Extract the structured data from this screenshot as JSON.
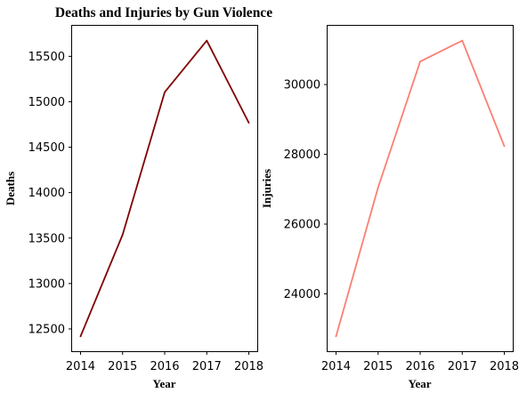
{
  "chart_data": [
    {
      "type": "line",
      "title": "Deaths and Injuries by Gun Violence",
      "xlabel": "Year",
      "ylabel": "Deaths",
      "x": [
        2014,
        2015,
        2016,
        2017,
        2018
      ],
      "series": [
        {
          "values": [
            12418,
            13537,
            15105,
            15673,
            14768
          ],
          "color": "#800000"
        }
      ],
      "xticks": [
        2014,
        2015,
        2016,
        2017,
        2018
      ],
      "yticks": [
        12500,
        13000,
        13500,
        14000,
        14500,
        15000,
        15500
      ],
      "xlim": [
        2013.8,
        2018.2
      ],
      "ylim": [
        12255,
        15836
      ],
      "grid": false
    },
    {
      "type": "line",
      "title": "",
      "xlabel": "Year",
      "ylabel": "Injuries",
      "x": [
        2014,
        2015,
        2016,
        2017,
        2018
      ],
      "series": [
        {
          "values": [
            22780,
            27050,
            30660,
            31260,
            28230
          ],
          "color": "#fa8072"
        }
      ],
      "xticks": [
        2014,
        2015,
        2016,
        2017,
        2018
      ],
      "yticks": [
        24000,
        26000,
        28000,
        30000
      ],
      "xlim": [
        2013.8,
        2018.2
      ],
      "ylim": [
        22356,
        31684
      ],
      "grid": false
    }
  ]
}
